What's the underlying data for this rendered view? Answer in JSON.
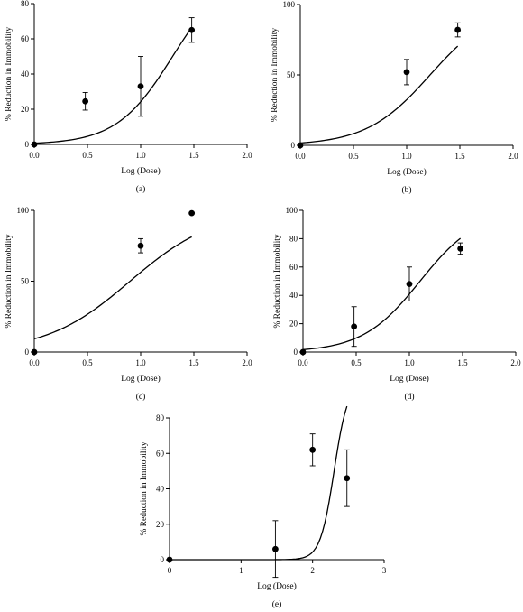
{
  "chart_data": [
    {
      "type": "scatter",
      "panel_label": "(a)",
      "xlabel": "Log (Dose)",
      "ylabel": "% Reduction in Immobility",
      "xlim": [
        0,
        2
      ],
      "ylim": [
        0,
        80
      ],
      "xticks": [
        "0.0",
        "0.5",
        "1.0",
        "1.5",
        "2.0"
      ],
      "yticks": [
        "0",
        "20",
        "40",
        "60",
        "80"
      ],
      "x_tick_values": [
        0,
        0.5,
        1,
        1.5,
        2
      ],
      "y_tick_values": [
        0,
        20,
        40,
        60,
        80
      ],
      "points": [
        {
          "x": 0,
          "y": 0
        },
        {
          "x": 0.48,
          "y": 24.5,
          "err": 5
        },
        {
          "x": 1.0,
          "y": 33,
          "err": 17
        },
        {
          "x": 1.48,
          "y": 65,
          "err": 7
        }
      ],
      "curve": {
        "bottom": 0,
        "top": 100,
        "ec50": 1.3,
        "hill": 1.65,
        "xmax": 1.48
      },
      "grid": false
    },
    {
      "type": "scatter",
      "panel_label": "(b)",
      "xlabel": "Log (Dose)",
      "ylabel": "% Reduction in Immobility",
      "xlim": [
        0,
        2
      ],
      "ylim": [
        0,
        100
      ],
      "xticks": [
        "0.0",
        "0.5",
        "1.0",
        "1.5",
        "2.0"
      ],
      "yticks": [
        "0",
        "50",
        "100"
      ],
      "x_tick_values": [
        0,
        0.5,
        1,
        1.5,
        2
      ],
      "y_tick_values": [
        0,
        50,
        100
      ],
      "points": [
        {
          "x": 0,
          "y": 0
        },
        {
          "x": 1.0,
          "y": 52,
          "err": 9
        },
        {
          "x": 1.48,
          "y": 82,
          "err": 5
        }
      ],
      "curve": {
        "bottom": 0,
        "top": 100,
        "ec50": 1.22,
        "hill": 1.45,
        "xmax": 1.48
      },
      "grid": false
    },
    {
      "type": "scatter",
      "panel_label": "(c)",
      "xlabel": "Log (Dose)",
      "ylabel": "% Reduction in Immobility",
      "xlim": [
        0,
        2
      ],
      "ylim": [
        0,
        100
      ],
      "xticks": [
        "0.0",
        "0.5",
        "1.0",
        "1.5",
        "2.0"
      ],
      "yticks": [
        "0",
        "50",
        "100"
      ],
      "x_tick_values": [
        0,
        0.5,
        1,
        1.5,
        2
      ],
      "y_tick_values": [
        0,
        50,
        100
      ],
      "points": [
        {
          "x": 0,
          "y": 0
        },
        {
          "x": 1.0,
          "y": 75,
          "err": 5
        },
        {
          "x": 1.48,
          "y": 98,
          "err": 0
        }
      ],
      "curve": {
        "bottom": 0,
        "top": 100,
        "ec50": 0.9,
        "hill": 1.1,
        "xmax": 1.48
      },
      "grid": false
    },
    {
      "type": "scatter",
      "panel_label": "(d)",
      "xlabel": "Log (Dose)",
      "ylabel": "% Reduction in Immobility",
      "xlim": [
        0,
        2
      ],
      "ylim": [
        0,
        100
      ],
      "xticks": [
        "0.0",
        "0.5",
        "1.0",
        "1.5",
        "2.0"
      ],
      "yticks": [
        "0",
        "20",
        "40",
        "60",
        "80",
        "100"
      ],
      "x_tick_values": [
        0,
        0.5,
        1,
        1.5,
        2
      ],
      "y_tick_values": [
        0,
        20,
        40,
        60,
        80,
        100
      ],
      "points": [
        {
          "x": 0,
          "y": 0
        },
        {
          "x": 0.48,
          "y": 18,
          "err": 14
        },
        {
          "x": 1.0,
          "y": 48,
          "err": 12
        },
        {
          "x": 1.48,
          "y": 73,
          "err": 4
        }
      ],
      "curve": {
        "bottom": 0,
        "top": 100,
        "ec50": 1.1,
        "hill": 1.6,
        "xmax": 1.48
      },
      "grid": false
    },
    {
      "type": "scatter",
      "panel_label": "(e)",
      "xlabel": "Log (Dose)",
      "ylabel": "% Reduction in Immobility",
      "xlim": [
        0,
        3
      ],
      "ylim": [
        0,
        80
      ],
      "xticks": [
        "0",
        "1",
        "2",
        "3"
      ],
      "yticks": [
        "0",
        "20",
        "40",
        "60",
        "80"
      ],
      "x_tick_values": [
        0,
        1,
        2,
        3
      ],
      "y_tick_values": [
        0,
        20,
        40,
        60,
        80
      ],
      "points": [
        {
          "x": 0,
          "y": 0
        },
        {
          "x": 1.48,
          "y": 6,
          "err": 16
        },
        {
          "x": 2.0,
          "y": 62,
          "err": 9
        },
        {
          "x": 2.48,
          "y": 46,
          "err": 16
        }
      ],
      "curve": {
        "bottom": 0,
        "top": 100,
        "ec50": 2.3,
        "hill": 4.5,
        "xmax": 2.48
      },
      "grid": false
    }
  ]
}
